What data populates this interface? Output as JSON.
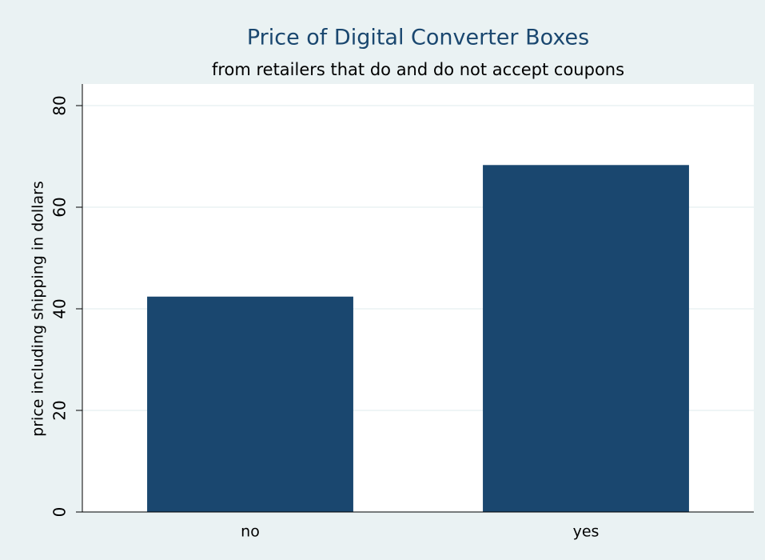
{
  "chart_data": {
    "type": "bar",
    "title": "Price of Digital Converter Boxes",
    "subtitle": "from retailers that do and do not accept coupons",
    "y_label": "price including shipping in dollars",
    "categories": [
      "no",
      "yes"
    ],
    "values": [
      42.4,
      68.3
    ],
    "color": "#1a476f",
    "ylim": [
      0,
      80
    ],
    "yticks": [
      0,
      20,
      40,
      60,
      80
    ],
    "grid": true
  }
}
